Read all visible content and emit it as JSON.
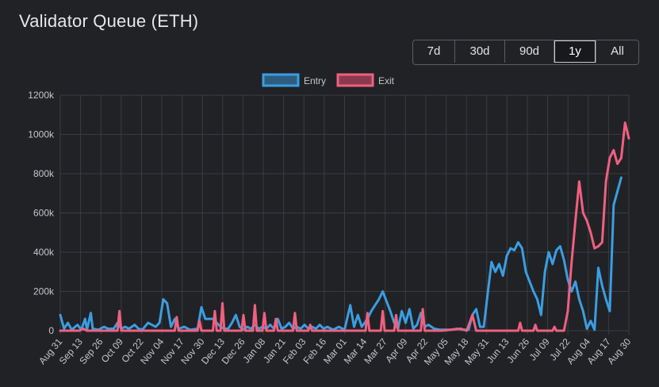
{
  "header": {
    "title": "Validator Queue (ETH)"
  },
  "range_selector": {
    "options": [
      "7d",
      "30d",
      "90d",
      "1y",
      "All"
    ],
    "selected": "1y"
  },
  "colors": {
    "entry": "#3a9ee2",
    "exit": "#f0607f",
    "grid": "#3a3c41",
    "background": "#212226"
  },
  "chart_data": {
    "type": "line",
    "title": "",
    "xlabel": "",
    "ylabel": "",
    "ylim": [
      0,
      1200000
    ],
    "y_ticks": [
      "0",
      "200k",
      "400k",
      "600k",
      "800k",
      "1000k",
      "1200k"
    ],
    "x_tick_labels": [
      "Aug 31",
      "Sep 13",
      "Sep 26",
      "Oct 09",
      "Oct 22",
      "Nov 04",
      "Nov 17",
      "Nov 30",
      "Dec 13",
      "Dec 26",
      "Jan 08",
      "Jan 21",
      "Feb 03",
      "Feb 16",
      "Mar 01",
      "Mar 14",
      "Mar 27",
      "Apr 09",
      "Apr 22",
      "May 05",
      "May 18",
      "May 31",
      "Jun 13",
      "Jun 26",
      "Jul 09",
      "Jul 22",
      "Aug 04",
      "Aug 17",
      "Aug 30"
    ],
    "grid": true,
    "legend_position": "top",
    "series": [
      {
        "name": "Entry",
        "points": [
          [
            0,
            80000
          ],
          [
            2,
            10000
          ],
          [
            4,
            40000
          ],
          [
            6,
            5000
          ],
          [
            9,
            30000
          ],
          [
            11,
            5000
          ],
          [
            13,
            60000
          ],
          [
            14,
            5000
          ],
          [
            16,
            90000
          ],
          [
            17,
            10000
          ],
          [
            20,
            5000
          ],
          [
            23,
            20000
          ],
          [
            25,
            10000
          ],
          [
            28,
            10000
          ],
          [
            30,
            40000
          ],
          [
            32,
            10000
          ],
          [
            34,
            20000
          ],
          [
            36,
            10000
          ],
          [
            39,
            30000
          ],
          [
            41,
            10000
          ],
          [
            43,
            5000
          ],
          [
            46,
            40000
          ],
          [
            48,
            30000
          ],
          [
            50,
            20000
          ],
          [
            52,
            40000
          ],
          [
            54,
            160000
          ],
          [
            56,
            140000
          ],
          [
            58,
            20000
          ],
          [
            60,
            60000
          ],
          [
            62,
            10000
          ],
          [
            65,
            20000
          ],
          [
            68,
            5000
          ],
          [
            72,
            10000
          ],
          [
            74,
            120000
          ],
          [
            76,
            60000
          ],
          [
            80,
            60000
          ],
          [
            82,
            40000
          ],
          [
            84,
            20000
          ],
          [
            86,
            10000
          ],
          [
            88,
            10000
          ],
          [
            90,
            40000
          ],
          [
            92,
            80000
          ],
          [
            94,
            20000
          ],
          [
            96,
            5000
          ],
          [
            98,
            20000
          ],
          [
            100,
            10000
          ],
          [
            102,
            30000
          ],
          [
            104,
            10000
          ],
          [
            106,
            20000
          ],
          [
            108,
            10000
          ],
          [
            110,
            30000
          ],
          [
            112,
            10000
          ],
          [
            114,
            60000
          ],
          [
            116,
            10000
          ],
          [
            118,
            20000
          ],
          [
            120,
            40000
          ],
          [
            122,
            10000
          ],
          [
            124,
            20000
          ],
          [
            126,
            10000
          ],
          [
            128,
            30000
          ],
          [
            130,
            10000
          ],
          [
            132,
            20000
          ],
          [
            134,
            10000
          ],
          [
            136,
            30000
          ],
          [
            138,
            10000
          ],
          [
            140,
            20000
          ],
          [
            143,
            5000
          ],
          [
            146,
            20000
          ],
          [
            149,
            5000
          ],
          [
            152,
            130000
          ],
          [
            154,
            20000
          ],
          [
            156,
            80000
          ],
          [
            158,
            20000
          ],
          [
            161,
            60000
          ],
          [
            163,
            100000
          ],
          [
            165,
            130000
          ],
          [
            167,
            160000
          ],
          [
            169,
            200000
          ],
          [
            171,
            150000
          ],
          [
            173,
            100000
          ],
          [
            175,
            40000
          ],
          [
            177,
            10000
          ],
          [
            179,
            100000
          ],
          [
            181,
            40000
          ],
          [
            183,
            110000
          ],
          [
            185,
            10000
          ],
          [
            187,
            30000
          ],
          [
            189,
            90000
          ],
          [
            191,
            20000
          ],
          [
            193,
            30000
          ],
          [
            196,
            10000
          ],
          [
            199,
            5000
          ],
          [
            202,
            5000
          ],
          [
            205,
            5000
          ],
          [
            208,
            10000
          ],
          [
            211,
            5000
          ],
          [
            214,
            5000
          ],
          [
            216,
            80000
          ],
          [
            218,
            110000
          ],
          [
            220,
            20000
          ],
          [
            222,
            20000
          ],
          [
            224,
            190000
          ],
          [
            226,
            350000
          ],
          [
            228,
            300000
          ],
          [
            230,
            340000
          ],
          [
            232,
            280000
          ],
          [
            234,
            380000
          ],
          [
            236,
            420000
          ],
          [
            238,
            410000
          ],
          [
            240,
            450000
          ],
          [
            242,
            420000
          ],
          [
            244,
            300000
          ],
          [
            246,
            250000
          ],
          [
            248,
            200000
          ],
          [
            250,
            160000
          ],
          [
            252,
            80000
          ],
          [
            254,
            300000
          ],
          [
            256,
            400000
          ],
          [
            258,
            340000
          ],
          [
            260,
            410000
          ],
          [
            262,
            430000
          ],
          [
            264,
            360000
          ],
          [
            266,
            260000
          ],
          [
            268,
            200000
          ],
          [
            270,
            250000
          ],
          [
            272,
            160000
          ],
          [
            274,
            100000
          ],
          [
            276,
            10000
          ],
          [
            278,
            50000
          ],
          [
            280,
            5000
          ],
          [
            282,
            320000
          ],
          [
            284,
            230000
          ],
          [
            286,
            160000
          ],
          [
            288,
            100000
          ],
          [
            290,
            640000
          ],
          [
            292,
            710000
          ],
          [
            294,
            780000
          ]
        ]
      },
      {
        "name": "Exit",
        "points": [
          [
            0,
            0
          ],
          [
            10,
            0
          ],
          [
            12,
            10000
          ],
          [
            14,
            0
          ],
          [
            30,
            0
          ],
          [
            31,
            100000
          ],
          [
            32,
            0
          ],
          [
            60,
            0
          ],
          [
            61,
            70000
          ],
          [
            62,
            0
          ],
          [
            72,
            0
          ],
          [
            73,
            50000
          ],
          [
            74,
            0
          ],
          [
            80,
            0
          ],
          [
            81,
            100000
          ],
          [
            82,
            0
          ],
          [
            84,
            0
          ],
          [
            85,
            140000
          ],
          [
            86,
            0
          ],
          [
            95,
            0
          ],
          [
            96,
            80000
          ],
          [
            97,
            0
          ],
          [
            101,
            0
          ],
          [
            102,
            130000
          ],
          [
            103,
            0
          ],
          [
            106,
            0
          ],
          [
            107,
            90000
          ],
          [
            108,
            0
          ],
          [
            112,
            0
          ],
          [
            113,
            60000
          ],
          [
            114,
            0
          ],
          [
            122,
            0
          ],
          [
            123,
            90000
          ],
          [
            124,
            0
          ],
          [
            130,
            0
          ],
          [
            131,
            30000
          ],
          [
            132,
            0
          ],
          [
            160,
            0
          ],
          [
            161,
            90000
          ],
          [
            162,
            0
          ],
          [
            168,
            0
          ],
          [
            169,
            100000
          ],
          [
            170,
            0
          ],
          [
            175,
            0
          ],
          [
            176,
            80000
          ],
          [
            177,
            0
          ],
          [
            189,
            0
          ],
          [
            190,
            110000
          ],
          [
            191,
            0
          ],
          [
            200,
            0
          ],
          [
            210,
            10000
          ],
          [
            213,
            0
          ],
          [
            216,
            80000
          ],
          [
            218,
            0
          ],
          [
            240,
            0
          ],
          [
            241,
            40000
          ],
          [
            242,
            0
          ],
          [
            248,
            0
          ],
          [
            249,
            30000
          ],
          [
            250,
            0
          ],
          [
            258,
            0
          ],
          [
            259,
            20000
          ],
          [
            260,
            0
          ],
          [
            264,
            0
          ],
          [
            266,
            100000
          ],
          [
            268,
            350000
          ],
          [
            270,
            560000
          ],
          [
            272,
            760000
          ],
          [
            274,
            600000
          ],
          [
            276,
            560000
          ],
          [
            278,
            500000
          ],
          [
            280,
            420000
          ],
          [
            282,
            430000
          ],
          [
            284,
            450000
          ],
          [
            286,
            760000
          ],
          [
            288,
            880000
          ],
          [
            290,
            920000
          ],
          [
            292,
            850000
          ],
          [
            294,
            880000
          ],
          [
            296,
            1060000
          ],
          [
            298,
            980000
          ]
        ]
      }
    ]
  }
}
